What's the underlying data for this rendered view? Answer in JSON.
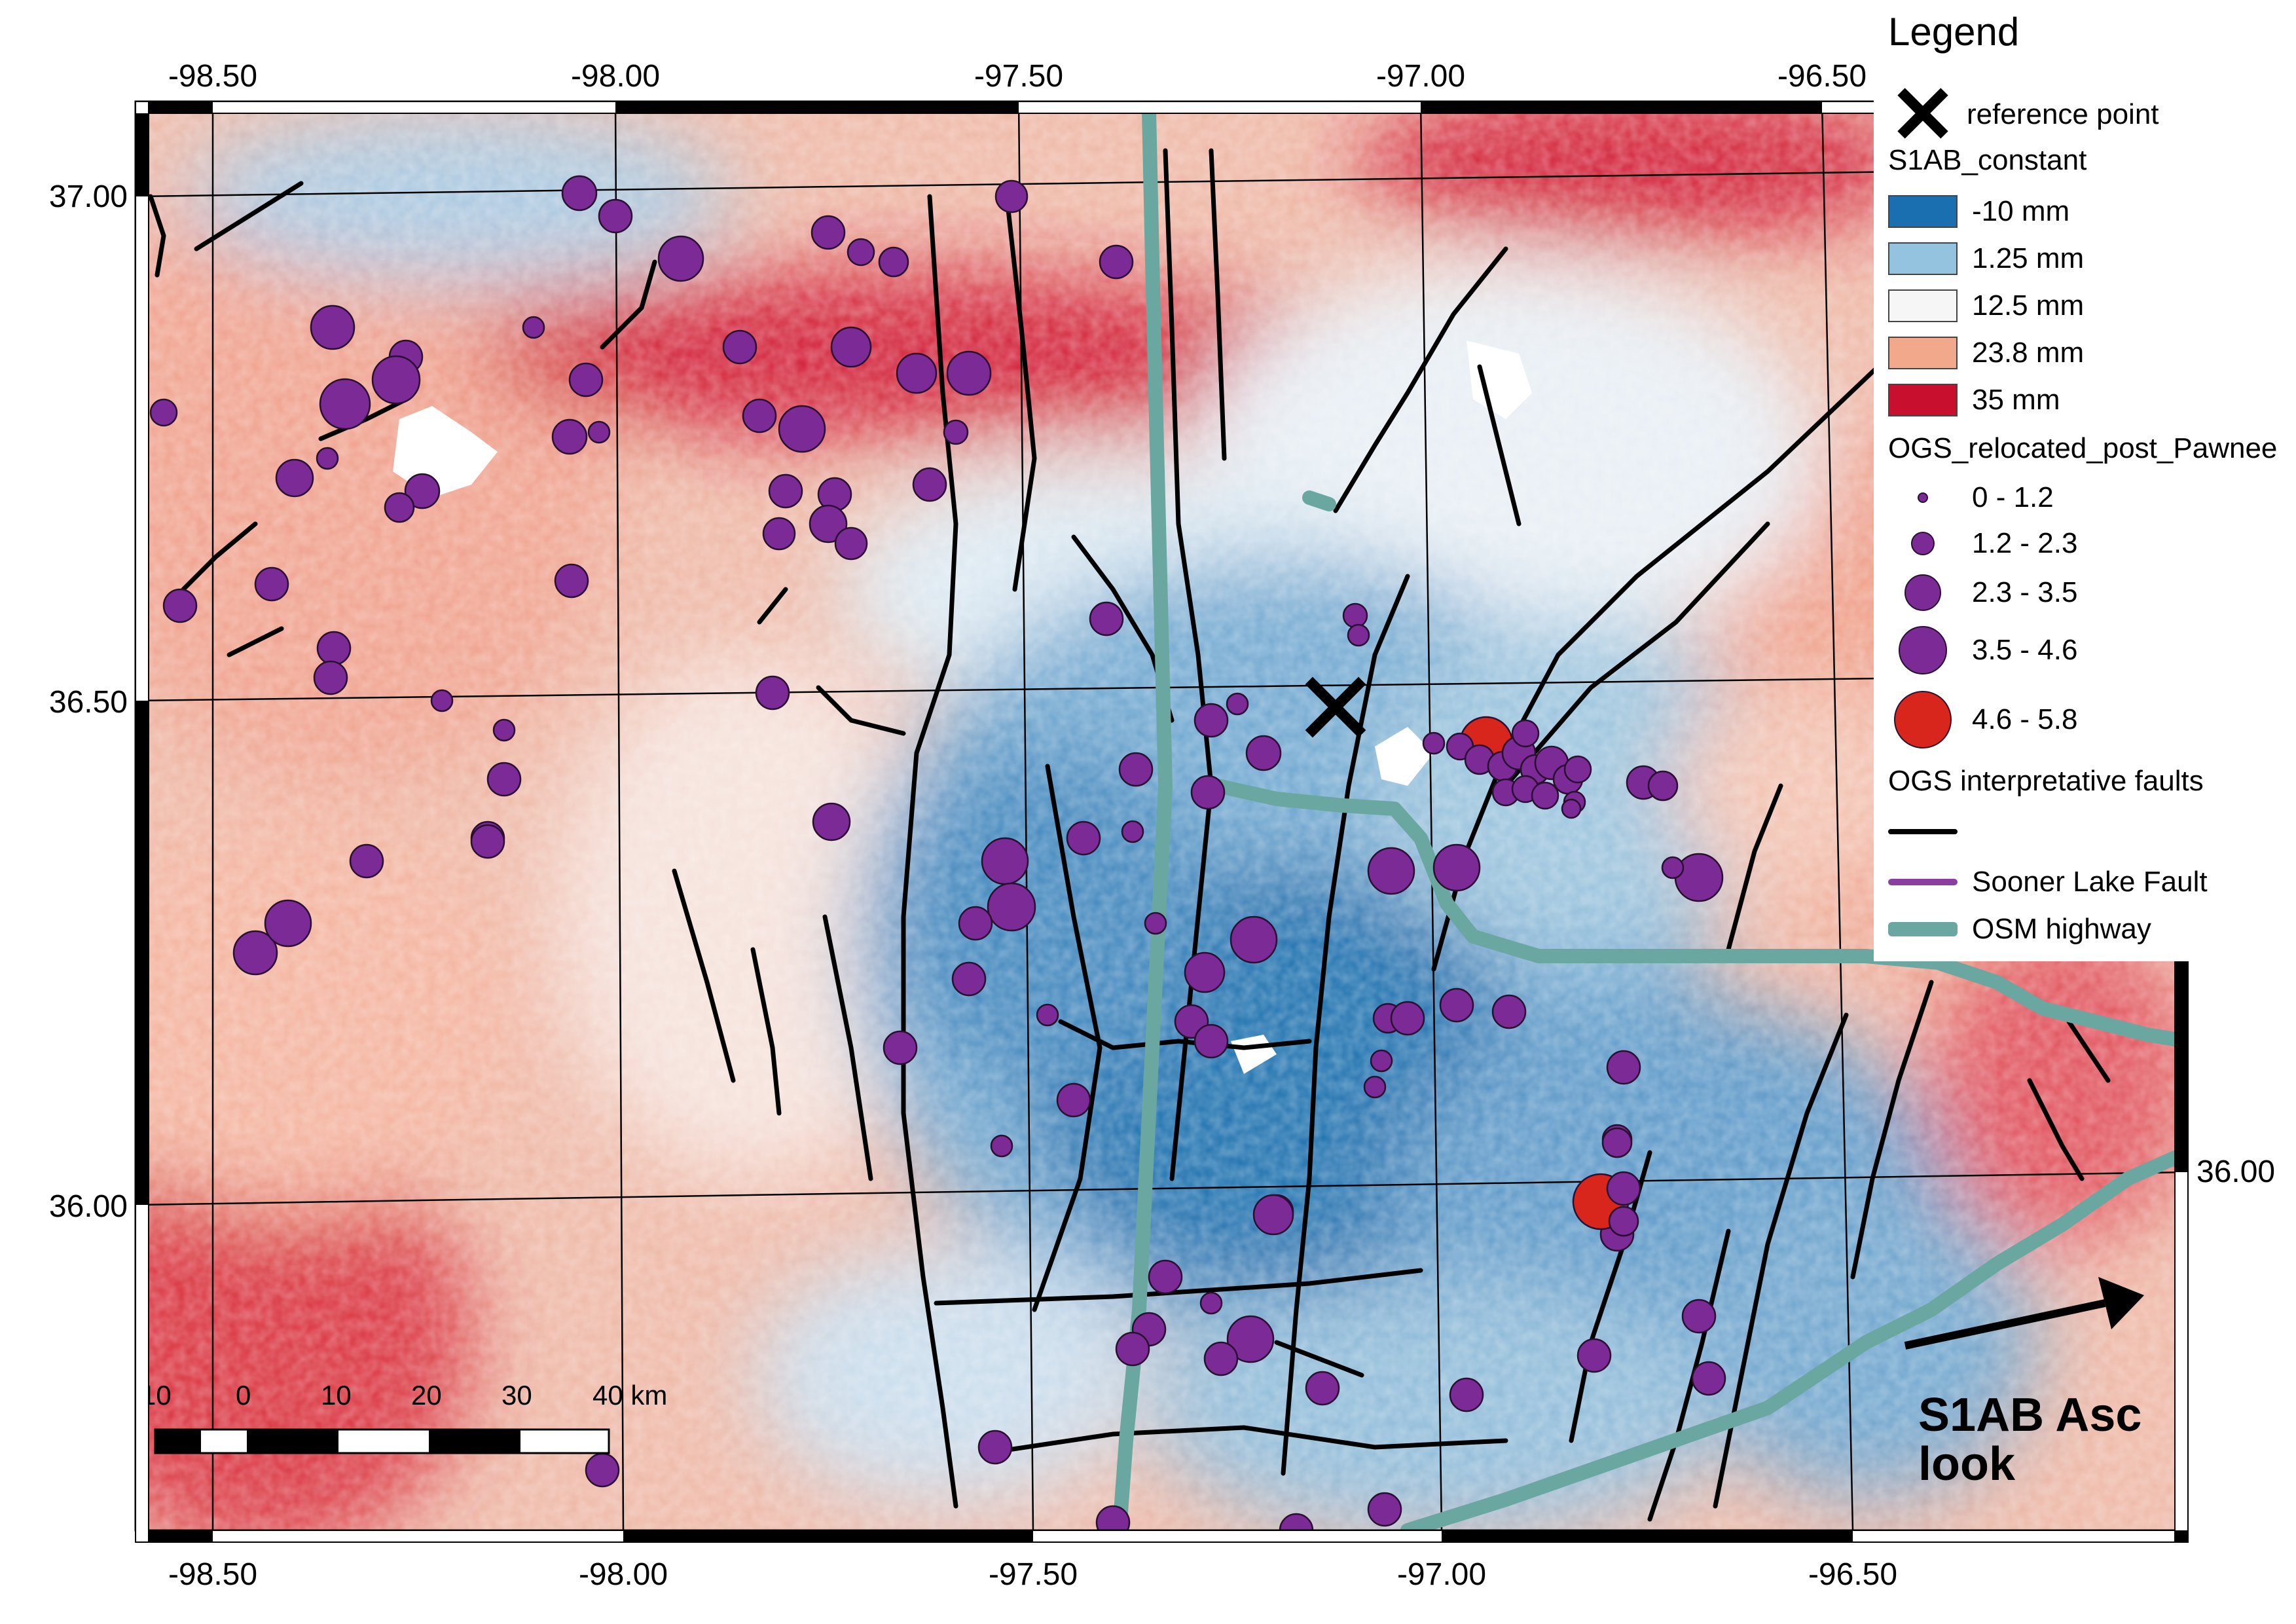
{
  "map": {
    "lon_ticks": [
      "-98.50",
      "-98.00",
      "-97.50",
      "-97.00",
      "-96.50"
    ],
    "lat_ticks": [
      "37.00",
      "36.50",
      "36.00"
    ],
    "right_lat_label": "36.00",
    "reference_marker": "x-cross",
    "look_text_line1": "S1AB Asc",
    "look_text_line2": "look",
    "scalebar": {
      "labels": [
        "10",
        "0",
        "10",
        "20",
        "30",
        "40 km"
      ]
    }
  },
  "legend": {
    "title": "Legend",
    "reference_label": "reference point",
    "displacement": {
      "title": "S1AB_constant",
      "classes": [
        {
          "label": "-10 mm",
          "color": "#1a6fb0"
        },
        {
          "label": "1.25 mm",
          "color": "#93c3de"
        },
        {
          "label": "12.5 mm",
          "color": "#f6f6f6"
        },
        {
          "label": "23.8 mm",
          "color": "#f2a88a"
        },
        {
          "label": "35 mm",
          "color": "#c8102e"
        }
      ]
    },
    "earthquakes": {
      "title": "OGS_relocated_post_Pawnee",
      "classes": [
        {
          "label": "0 - 1.2",
          "color": "#7b2a96"
        },
        {
          "label": "1.2 - 2.3",
          "color": "#7b2a96"
        },
        {
          "label": "2.3 - 3.5",
          "color": "#7b2a96"
        },
        {
          "label": "3.5 - 4.6",
          "color": "#7b2a96"
        },
        {
          "label": "4.6 - 5.8",
          "color": "#d9261c"
        }
      ]
    },
    "faults": {
      "title": "OGS interpretative faults",
      "color": "#000000"
    },
    "sooner_lake": {
      "label": "Sooner Lake Fault",
      "color": "#8a3fa0"
    },
    "highway": {
      "label": "OSM highway",
      "color": "#6aa7a1"
    }
  }
}
